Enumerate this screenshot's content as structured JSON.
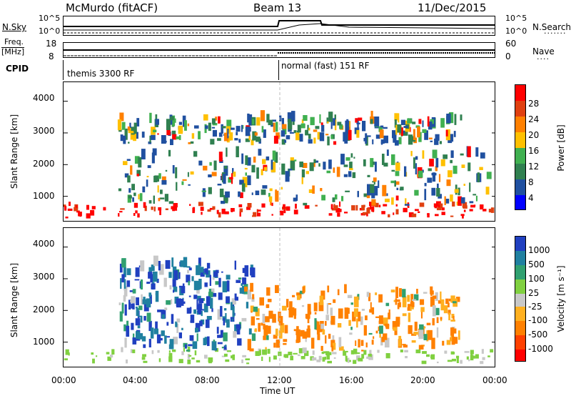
{
  "header": {
    "station": "McMurdo (fitACF)",
    "beam": "Beam 13",
    "date": "11/Dec/2015"
  },
  "top_panels": {
    "nsky_label": "N.Sky",
    "nsearch_label": "N.Search",
    "nsky_ticks": [
      "10^5",
      "10^0"
    ],
    "nsearch_ticks": [
      "10^5",
      "10^0"
    ],
    "freq_label_1": "Freq.",
    "freq_label_2": "[MHz]",
    "freq_ticks": [
      "18",
      "8"
    ],
    "nave_label": "Nave",
    "nave_ticks": [
      "60",
      "0"
    ],
    "cpid_label": "CPID",
    "cpid_mode_1": "themis 3300 RF",
    "cpid_mode_2": "normal (fast) 151 RF"
  },
  "x_axis": {
    "label": "Time UT",
    "ticks": [
      "00:00",
      "04:00",
      "08:00",
      "12:00",
      "16:00",
      "20:00",
      "00:00"
    ]
  },
  "chart_data": [
    {
      "type": "heatmap",
      "panel": "power",
      "ylabel": "Slant Range [km]",
      "y_ticks": [
        1000,
        2000,
        3000,
        4000
      ],
      "ylim": [
        180,
        4600
      ],
      "xlim": [
        "00:00",
        "24:00"
      ],
      "colorbar_label": "Power [dB]",
      "colorbar_ticks": [
        "28",
        "24",
        "20",
        "16",
        "12",
        "8",
        "4"
      ],
      "colors": [
        "#ff0000",
        "#e04010",
        "#ff8000",
        "#ffc000",
        "#40b050",
        "#308050",
        "#2050a0",
        "#0000ff"
      ],
      "series": [
        {
          "name": "near-range band",
          "x_hours": [
            0.0,
            24.0
          ],
          "range_km": [
            300,
            700
          ],
          "level": "high"
        },
        {
          "name": "far-range band",
          "x_hours": [
            3.0,
            22.0
          ],
          "range_km": [
            2600,
            3400
          ],
          "level": "mixed"
        },
        {
          "name": "mid-range echoes",
          "x_hours": [
            3.0,
            23.5
          ],
          "range_km": [
            700,
            2300
          ],
          "level": "mixed"
        }
      ]
    },
    {
      "type": "heatmap",
      "panel": "velocity",
      "ylabel": "Slant Range [km]",
      "y_ticks": [
        1000,
        2000,
        3000,
        4000
      ],
      "ylim": [
        180,
        4600
      ],
      "xlim": [
        "00:00",
        "24:00"
      ],
      "colorbar_label": "Velocity [m s⁻¹]",
      "colorbar_ticks": [
        "1000",
        "500",
        "100",
        "25",
        "-25",
        "-100",
        "-500",
        "-1000"
      ],
      "colors": [
        "#2040c0",
        "#2080a0",
        "#30a070",
        "#80d040",
        "#c8c8c8",
        "#ffb020",
        "#ff8000",
        "#ff4000",
        "#ff0000"
      ],
      "series": [
        {
          "name": "near-range band",
          "x_hours": [
            0.0,
            24.0
          ],
          "range_km": [
            300,
            700
          ],
          "velocity": "positive low"
        },
        {
          "name": "early streaks",
          "x_hours": [
            3.0,
            10.5
          ],
          "range_km": [
            700,
            3400
          ],
          "velocity": "positive"
        },
        {
          "name": "late streaks",
          "x_hours": [
            10.0,
            22.0
          ],
          "range_km": [
            700,
            2600
          ],
          "velocity": "negative"
        }
      ]
    }
  ]
}
